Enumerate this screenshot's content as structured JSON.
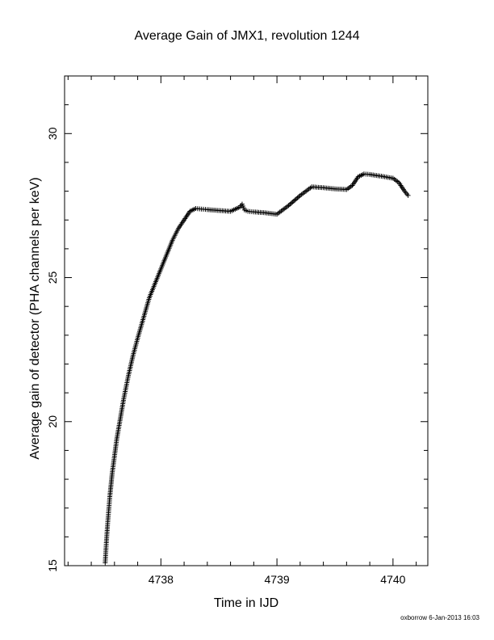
{
  "chart_data": {
    "type": "scatter",
    "title": "Average Gain of JMX1, revolution 1244",
    "xlabel": "Time in IJD",
    "ylabel": "Average gain of detector (PHA channels per keV)",
    "xlim": [
      4737.17,
      4740.3
    ],
    "ylim": [
      15,
      32
    ],
    "x_ticks": [
      4738,
      4739,
      4740
    ],
    "x_tick_labels": [
      "4738",
      "4739",
      "4740"
    ],
    "y_ticks": [
      15,
      20,
      25,
      30
    ],
    "y_tick_labels": [
      "15",
      "20",
      "25",
      "30"
    ],
    "marker": "+",
    "grid": false,
    "legend": "none",
    "series": [
      {
        "x": [
          4737.52,
          4737.53,
          4737.54,
          4737.55,
          4737.56,
          4737.57,
          4737.58,
          4737.6,
          4737.62,
          4737.65,
          4737.68,
          4737.72,
          4737.76,
          4737.8,
          4737.85,
          4737.9,
          4737.95,
          4738.0,
          4738.05,
          4738.1,
          4738.15,
          4738.2,
          4738.25,
          4738.3,
          4738.35,
          4738.4,
          4738.5,
          4738.6,
          4738.68,
          4738.7,
          4738.72,
          4738.75,
          4738.8,
          4738.9,
          4739.0,
          4739.1,
          4739.2,
          4739.3,
          4739.4,
          4739.5,
          4739.6,
          4739.65,
          4739.7,
          4739.75,
          4739.8,
          4739.9,
          4740.0,
          4740.05,
          4740.1,
          4740.13
        ],
        "y": [
          15.1,
          15.8,
          16.4,
          16.9,
          17.4,
          17.8,
          18.2,
          18.8,
          19.4,
          20.1,
          20.8,
          21.6,
          22.3,
          22.9,
          23.6,
          24.3,
          24.8,
          25.3,
          25.8,
          26.3,
          26.7,
          27.0,
          27.3,
          27.4,
          27.38,
          27.36,
          27.33,
          27.3,
          27.45,
          27.55,
          27.35,
          27.3,
          27.28,
          27.25,
          27.2,
          27.5,
          27.85,
          28.15,
          28.12,
          28.08,
          28.06,
          28.2,
          28.5,
          28.6,
          28.58,
          28.52,
          28.45,
          28.3,
          28.0,
          27.85
        ]
      }
    ]
  },
  "footer": {
    "credit": "oxborrow  6-Jan-2013 16:03"
  }
}
